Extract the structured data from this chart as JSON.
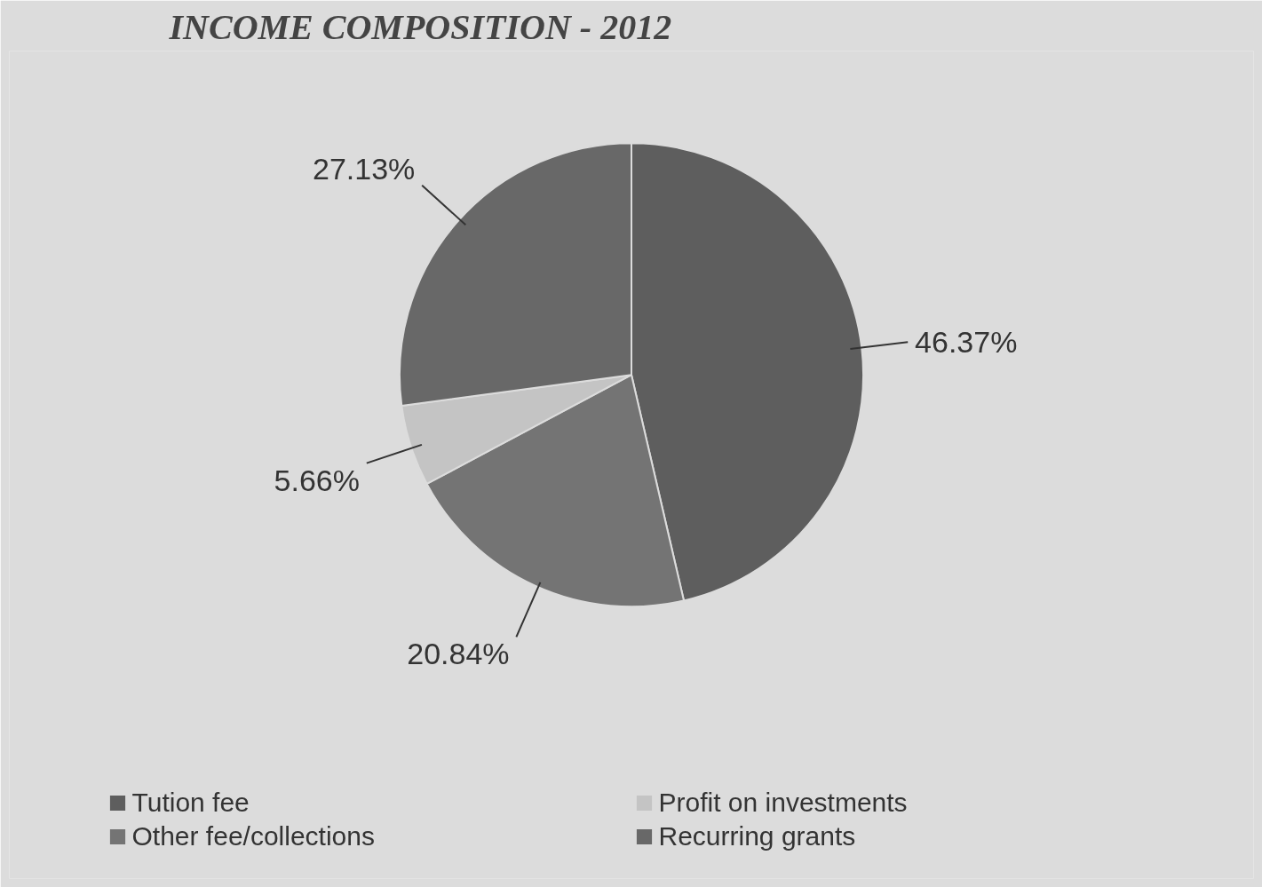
{
  "chart_data": {
    "type": "pie",
    "title": "INCOME COMPOSITION - 2012",
    "categories": [
      "Tution fee",
      "Other fee/collections",
      "Profit on investments",
      "Recurring grants"
    ],
    "values": [
      46.37,
      20.84,
      5.66,
      27.13
    ],
    "colors": [
      "#5e5e5e",
      "#747474",
      "#c4c4c4",
      "#686868"
    ],
    "value_labels": [
      "46.37%",
      "20.84%",
      "5.66%",
      "27.13%"
    ],
    "legend": "bottom"
  }
}
